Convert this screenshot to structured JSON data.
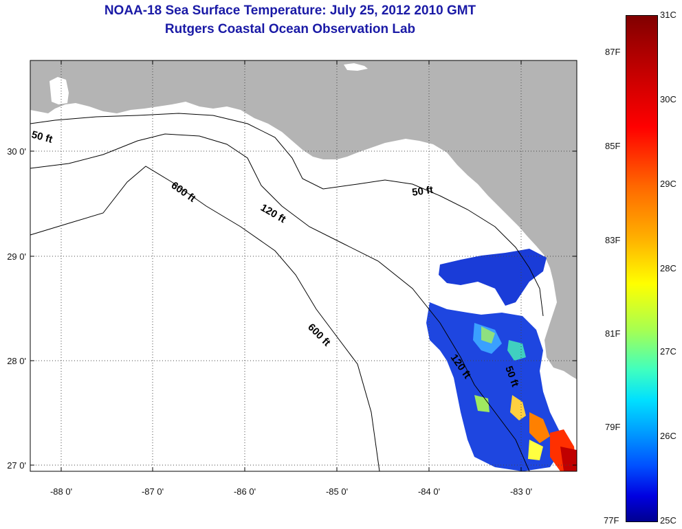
{
  "title_line1": "NOAA-18 Sea Surface Temperature:  July 25, 2012 2010 GMT",
  "title_line2": "Rutgers Coastal Ocean Observation Lab",
  "map": {
    "lon_labels": [
      "-88 0'",
      "-87 0'",
      "-86 0'",
      "-85 0'",
      "-84 0'",
      "-83 0'"
    ],
    "lat_labels": [
      "30 0'",
      "29 0'",
      "28 0'",
      "27 0'"
    ],
    "contour_labels": [
      "50 ft",
      "50 ft",
      "120 ft",
      "600 ft",
      "600 ft",
      "120 ft",
      "50 ft"
    ],
    "colors": {
      "land": "#b4b4b4",
      "water": "#ffffff",
      "contour": "#000000"
    },
    "grid": true
  },
  "colorbar": {
    "celsius_labels": [
      "31C",
      "30C",
      "29C",
      "28C",
      "27C",
      "26C",
      "25C"
    ],
    "fahrenheit_labels": [
      "87F",
      "85F",
      "83F",
      "81F",
      "79F",
      "77F"
    ],
    "range_celsius": [
      25,
      31
    ]
  }
}
